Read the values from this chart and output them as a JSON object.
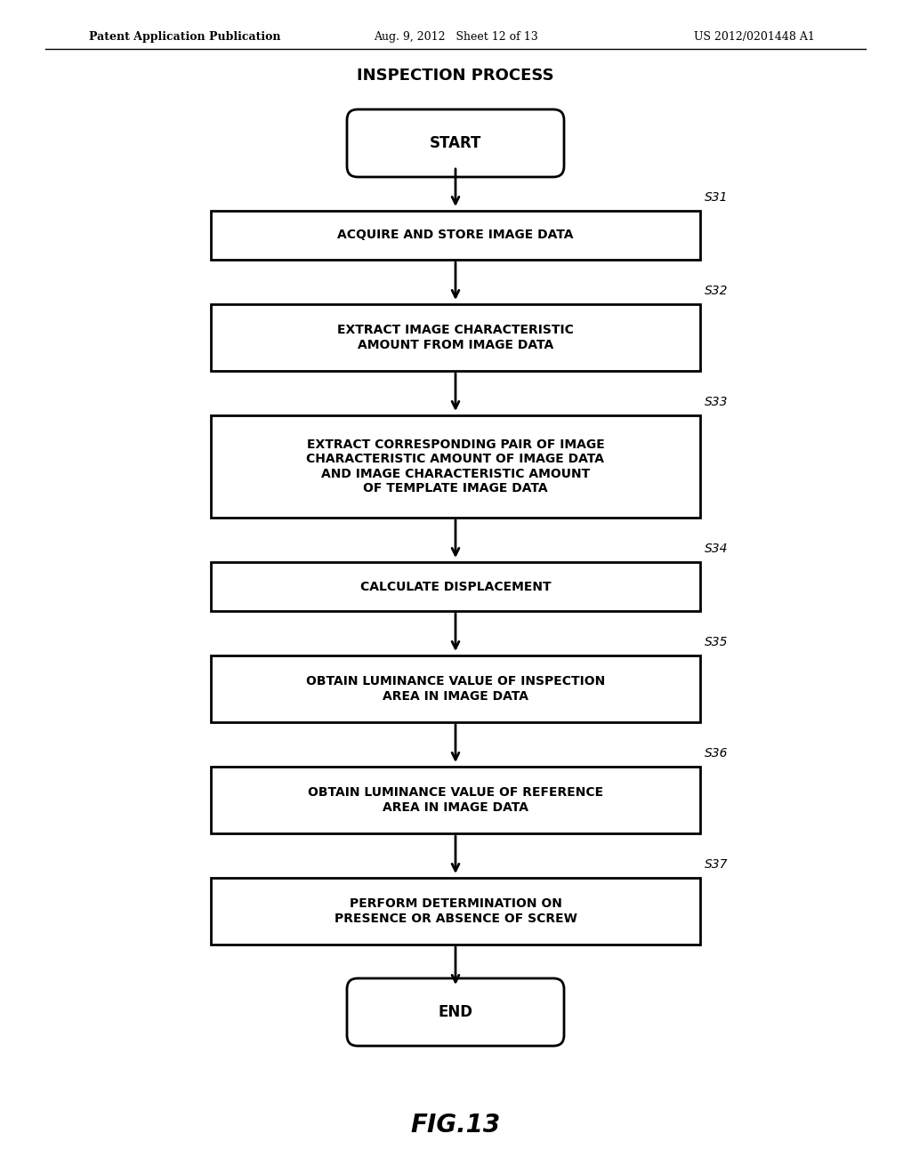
{
  "title": "INSPECTION PROCESS",
  "header_left": "Patent Application Publication",
  "header_mid": "Aug. 9, 2012   Sheet 12 of 13",
  "header_right": "US 2012/0201448 A1",
  "fig_label": "FIG.13",
  "background": "#ffffff",
  "steps": [
    {
      "id": "start",
      "type": "terminal",
      "label": "START"
    },
    {
      "id": "s31",
      "type": "process",
      "label": "ACQUIRE AND STORE IMAGE DATA",
      "step_num": "S31"
    },
    {
      "id": "s32",
      "type": "process",
      "label": "EXTRACT IMAGE CHARACTERISTIC\nAMOUNT FROM IMAGE DATA",
      "step_num": "S32"
    },
    {
      "id": "s33",
      "type": "process",
      "label": "EXTRACT CORRESPONDING PAIR OF IMAGE\nCHARACTERISTIC AMOUNT OF IMAGE DATA\nAND IMAGE CHARACTERISTIC AMOUNT\nOF TEMPLATE IMAGE DATA",
      "step_num": "S33"
    },
    {
      "id": "s34",
      "type": "process",
      "label": "CALCULATE DISPLACEMENT",
      "step_num": "S34"
    },
    {
      "id": "s35",
      "type": "process",
      "label": "OBTAIN LUMINANCE VALUE OF INSPECTION\nAREA IN IMAGE DATA",
      "step_num": "S35"
    },
    {
      "id": "s36",
      "type": "process",
      "label": "OBTAIN LUMINANCE VALUE OF REFERENCE\nAREA IN IMAGE DATA",
      "step_num": "S36"
    },
    {
      "id": "s37",
      "type": "process",
      "label": "PERFORM DETERMINATION ON\nPRESENCE OR ABSENCE OF SCREW",
      "step_num": "S37"
    },
    {
      "id": "end",
      "type": "terminal",
      "label": "END"
    }
  ]
}
